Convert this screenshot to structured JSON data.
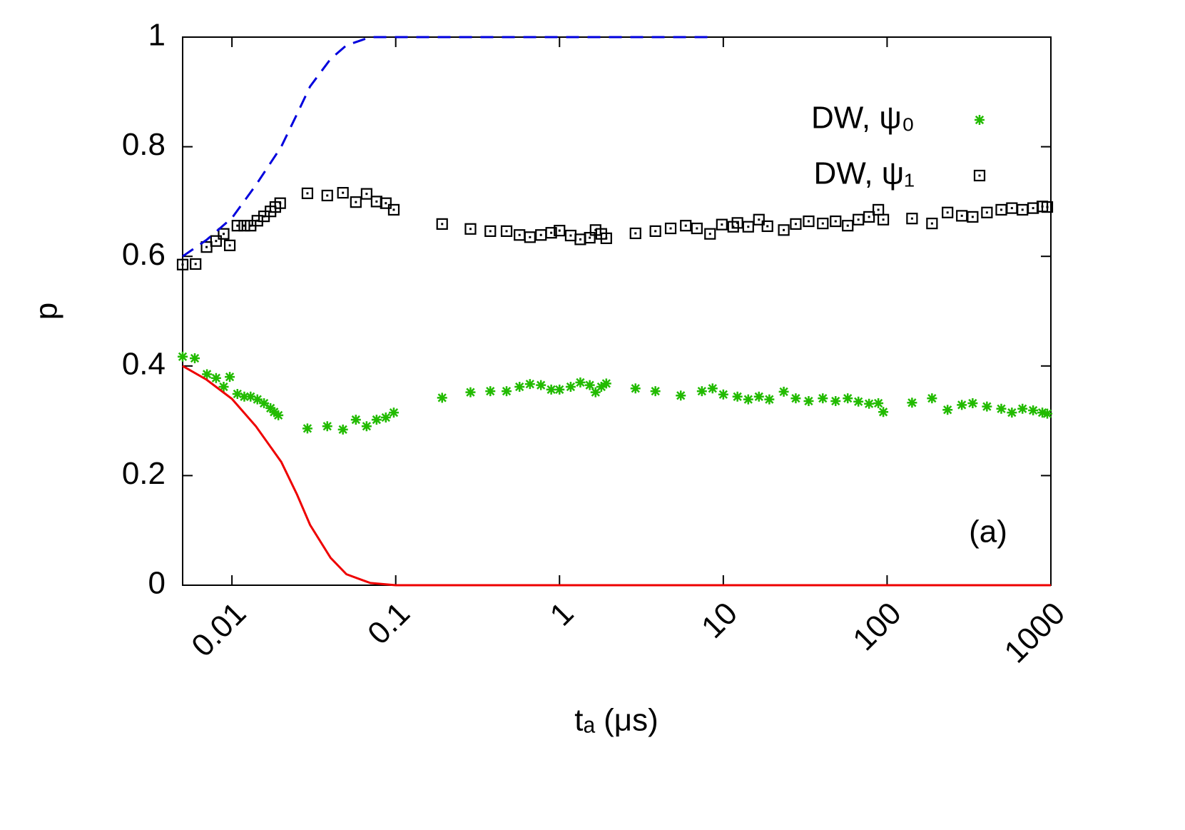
{
  "chart_data": {
    "type": "scatter",
    "x_label": "tₐ (μs)",
    "y_label": "p",
    "annotation": "(a)",
    "xlog": true,
    "xlim": [
      0.005,
      1000
    ],
    "ylim": [
      0,
      1
    ],
    "xticks": [
      0.01,
      0.1,
      1,
      10,
      100,
      1000
    ],
    "yticks": [
      0,
      0.2,
      0.4,
      0.6,
      0.8,
      1
    ],
    "legend": "top-right",
    "series": [
      {
        "name": "DW, ψ₀",
        "color": "#22bb00",
        "style": "points",
        "marker": "star",
        "x": [
          0.005,
          0.00593,
          0.00704,
          0.008,
          0.0089,
          0.0097,
          0.0108,
          0.0119,
          0.013,
          0.0143,
          0.0157,
          0.0172,
          0.0181,
          0.0192,
          0.0289,
          0.0382,
          0.0476,
          0.0571,
          0.0664,
          0.0764,
          0.087,
          0.0973,
          0.192,
          0.286,
          0.378,
          0.475,
          0.57,
          0.66,
          0.77,
          0.89,
          1.0,
          1.17,
          1.34,
          1.53,
          1.66,
          1.8,
          1.93,
          2.91,
          3.85,
          5.5,
          7.4,
          8.6,
          10,
          12.2,
          14.2,
          16.5,
          19.1,
          23.4,
          27.7,
          33.2,
          40.5,
          48.5,
          57.5,
          66.8,
          77.6,
          88.4,
          94.8,
          142,
          188,
          234,
          286,
          333,
          407,
          498,
          578,
          671,
          779,
          887,
          951
        ],
        "values": [
          0.417,
          0.414,
          0.385,
          0.378,
          0.362,
          0.38,
          0.349,
          0.344,
          0.344,
          0.339,
          0.332,
          0.323,
          0.316,
          0.31,
          0.286,
          0.29,
          0.284,
          0.302,
          0.29,
          0.302,
          0.306,
          0.315,
          0.342,
          0.352,
          0.354,
          0.354,
          0.362,
          0.367,
          0.365,
          0.357,
          0.357,
          0.362,
          0.37,
          0.365,
          0.352,
          0.362,
          0.368,
          0.359,
          0.354,
          0.346,
          0.354,
          0.359,
          0.348,
          0.344,
          0.339,
          0.344,
          0.339,
          0.353,
          0.341,
          0.336,
          0.341,
          0.336,
          0.341,
          0.335,
          0.331,
          0.332,
          0.316,
          0.333,
          0.341,
          0.32,
          0.329,
          0.332,
          0.326,
          0.322,
          0.315,
          0.322,
          0.319,
          0.315,
          0.313
        ]
      },
      {
        "name": "DW, ψ₁",
        "color": "#000000",
        "style": "points",
        "marker": "square",
        "x": [
          0.005,
          0.006,
          0.007,
          0.008,
          0.0089,
          0.0097,
          0.0108,
          0.0119,
          0.013,
          0.0143,
          0.0157,
          0.0172,
          0.0184,
          0.0197,
          0.0289,
          0.0382,
          0.0476,
          0.0571,
          0.0664,
          0.0764,
          0.087,
          0.0973,
          0.192,
          0.286,
          0.378,
          0.475,
          0.57,
          0.66,
          0.77,
          0.89,
          1.0,
          1.17,
          1.34,
          1.53,
          1.66,
          1.8,
          1.93,
          2.91,
          3.85,
          4.77,
          5.9,
          6.9,
          8.3,
          9.8,
          11.5,
          12.2,
          14.2,
          16.5,
          18.6,
          23.4,
          27.7,
          33.2,
          40.5,
          48.5,
          57.5,
          66.8,
          77.6,
          88.4,
          94.8,
          142,
          188,
          234,
          286,
          333,
          407,
          498,
          578,
          671,
          779,
          887,
          951
        ],
        "values": [
          0.585,
          0.586,
          0.617,
          0.628,
          0.641,
          0.62,
          0.656,
          0.656,
          0.656,
          0.665,
          0.673,
          0.682,
          0.69,
          0.697,
          0.715,
          0.711,
          0.716,
          0.699,
          0.714,
          0.7,
          0.697,
          0.685,
          0.659,
          0.65,
          0.646,
          0.646,
          0.639,
          0.635,
          0.639,
          0.643,
          0.647,
          0.638,
          0.631,
          0.634,
          0.648,
          0.641,
          0.633,
          0.642,
          0.646,
          0.651,
          0.656,
          0.651,
          0.641,
          0.658,
          0.654,
          0.661,
          0.654,
          0.667,
          0.655,
          0.648,
          0.659,
          0.664,
          0.66,
          0.664,
          0.656,
          0.667,
          0.672,
          0.685,
          0.667,
          0.669,
          0.66,
          0.68,
          0.674,
          0.672,
          0.68,
          0.685,
          0.688,
          0.685,
          0.688,
          0.691,
          0.69
        ]
      },
      {
        "color": "#ee0000",
        "style": "line",
        "x": [
          0.005,
          0.007,
          0.01,
          0.014,
          0.02,
          0.025,
          0.03,
          0.04,
          0.05,
          0.07,
          0.1,
          1,
          1000
        ],
        "values": [
          0.4,
          0.375,
          0.34,
          0.29,
          0.225,
          0.165,
          0.11,
          0.05,
          0.02,
          0.004,
          0,
          0,
          0
        ]
      },
      {
        "color": "#0000dd",
        "style": "line",
        "dash": true,
        "x": [
          0.005,
          0.007,
          0.01,
          0.014,
          0.02,
          0.025,
          0.03,
          0.04,
          0.05,
          0.07,
          0.1,
          8
        ],
        "values": [
          0.6,
          0.63,
          0.67,
          0.73,
          0.8,
          0.86,
          0.91,
          0.96,
          0.985,
          1,
          1,
          1
        ]
      }
    ]
  }
}
